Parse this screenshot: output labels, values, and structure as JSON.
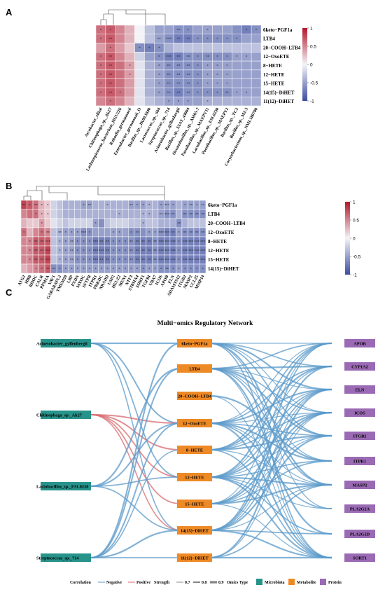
{
  "panels": {
    "a": "A",
    "b": "B",
    "c": "C"
  },
  "colorbar_ticks": [
    "1",
    "0.5",
    "0",
    "-0.5",
    "-1"
  ],
  "chart_data": [
    {
      "type": "heatmap",
      "panel": "A",
      "rows": [
        "6keto−PGF1a",
        "LTB4",
        "20−COOH−LTB4",
        "12−OxoETE",
        "8−HETE",
        "12−HETE",
        "15−HETE",
        "14(15)−DiHET",
        "11(12)−DiHET"
      ],
      "columns": [
        "Arcobacter_ellisii",
        "Chitinophaga_sp._Ak27",
        "Lachnospiraceae_bacterium_HGU226",
        "Rahnella_germanoacii",
        "Enterobacter_germanoaii_O",
        "Bacillus_sp._JK00.1840",
        "Lactococcus_sp._S04",
        "Streptococcus_sp._714",
        "Acinetobacter_gyllenbergii",
        "Bacillus_sp._EIAT_43004",
        "Oceanobacillus_sp._AM05-7",
        "Paenibacillus_sp._MAEPY11",
        "Lactobacillus_sp._ESL0230",
        "Paenibacillus_sp._MAEPY2",
        "Bacillus_sp._YC2",
        "Bacillus_sp._M2-3",
        "Corynebacterium_sp._NML180780"
      ],
      "values": [
        [
          0.6,
          0.7,
          0.5,
          0.3,
          0.0,
          -0.3,
          -0.5,
          -0.5,
          -0.6,
          -0.6,
          -0.5,
          -0.5,
          -0.5,
          -0.5,
          -0.6,
          -0.7,
          -0.6
        ],
        [
          0.6,
          0.7,
          0.5,
          0.3,
          0.0,
          -0.3,
          -0.5,
          -0.6,
          -0.7,
          -0.7,
          -0.6,
          -0.6,
          -0.6,
          -0.6,
          -0.6,
          -0.5,
          -0.5
        ],
        [
          0.4,
          0.6,
          0.4,
          0.2,
          -0.6,
          -0.7,
          -0.6,
          -0.4,
          -0.3,
          -0.3,
          -0.3,
          -0.3,
          -0.3,
          -0.3,
          -0.3,
          -0.3,
          -0.3
        ],
        [
          0.6,
          0.7,
          0.5,
          0.3,
          -0.2,
          -0.5,
          -0.6,
          -0.7,
          -0.7,
          -0.6,
          -0.6,
          -0.6,
          -0.6,
          -0.6,
          -0.5,
          -0.5,
          -0.5
        ],
        [
          0.6,
          0.7,
          0.6,
          0.4,
          -0.1,
          -0.4,
          -0.5,
          -0.6,
          -0.6,
          -0.6,
          -0.6,
          -0.5,
          -0.5,
          -0.5,
          -0.5,
          -0.5,
          -0.5
        ],
        [
          0.6,
          0.7,
          0.6,
          0.4,
          -0.1,
          -0.4,
          -0.5,
          -0.6,
          -0.6,
          -0.6,
          -0.6,
          -0.5,
          -0.5,
          -0.5,
          -0.5,
          -0.5,
          -0.5
        ],
        [
          0.6,
          0.7,
          0.6,
          0.4,
          -0.1,
          -0.4,
          -0.5,
          -0.6,
          -0.6,
          -0.6,
          -0.6,
          -0.5,
          -0.5,
          -0.5,
          -0.5,
          -0.5,
          -0.5
        ],
        [
          0.6,
          0.7,
          0.6,
          0.4,
          -0.1,
          -0.4,
          -0.5,
          -0.6,
          -0.7,
          -0.6,
          -0.6,
          -0.6,
          -0.6,
          -0.6,
          -0.5,
          -0.5,
          -0.5
        ],
        [
          0.5,
          0.6,
          0.5,
          0.3,
          -0.1,
          -0.3,
          -0.4,
          -0.5,
          -0.5,
          -0.5,
          -0.5,
          -0.4,
          -0.4,
          -0.4,
          -0.4,
          -0.4,
          -0.4
        ]
      ],
      "stars": [
        [
          "*",
          "*",
          "",
          "",
          "",
          "",
          "",
          "",
          "**",
          "*",
          "",
          "*",
          "",
          "",
          "",
          "*",
          "*"
        ],
        [
          "*",
          "**",
          "",
          "",
          "",
          "",
          "**",
          "***",
          "**",
          "**",
          "*",
          "*",
          "*",
          "*",
          "*",
          "",
          ""
        ],
        [
          "",
          "*",
          "",
          "",
          "*",
          "*",
          "*",
          "",
          "",
          "",
          "",
          "",
          "",
          "",
          "",
          "",
          ""
        ],
        [
          "*",
          "**",
          "",
          "",
          "",
          "",
          "*",
          "***",
          "**",
          "**",
          "*",
          "**",
          "*",
          "*",
          "*",
          "*",
          ""
        ],
        [
          "*",
          "**",
          "",
          "*",
          "",
          "",
          "*",
          "**",
          "**",
          "**",
          "*",
          "*",
          "*",
          "*",
          "",
          "",
          ""
        ],
        [
          "*",
          "**",
          "",
          "*",
          "",
          "",
          "*",
          "**",
          "**",
          "**",
          "*",
          "*",
          "*",
          "*",
          "",
          "",
          ""
        ],
        [
          "*",
          "**",
          "",
          "",
          "",
          "",
          "*",
          "**",
          "**",
          "**",
          "*",
          "*",
          "*",
          "*",
          "",
          "",
          ""
        ],
        [
          "*",
          "**",
          "*",
          "",
          "",
          "",
          "*",
          "**",
          "**",
          "**",
          "*",
          "*",
          "*",
          "**",
          "*",
          "*",
          ""
        ],
        [
          "",
          "*",
          "",
          "",
          "",
          "",
          "",
          "*",
          "*",
          "*",
          "",
          "*",
          "",
          "",
          "",
          "",
          ""
        ]
      ],
      "range": [
        -1,
        1
      ]
    },
    {
      "type": "heatmap",
      "panel": "B",
      "rows": [
        "6keto−PGF1a",
        "LTB4",
        "20−COOH−LTB4",
        "12−OxoETE",
        "8−HETE",
        "12−HETE",
        "15−HETE",
        "14(15)−DiHET"
      ],
      "columns": [
        "ATG2",
        "HBB",
        "RHOC",
        "CALR",
        "PPM1A",
        "VAV1",
        "GABARAPL2",
        "TMEM59",
        "LBP",
        "PXDN",
        "MYOC",
        "SFTPB",
        "ITPR1",
        "PRKDC",
        "NRADD",
        "USP2",
        "HELZ2",
        "MEN1",
        "NTF3",
        "ST8SIA4",
        "SORT1",
        "TGFBI",
        "UBA7",
        "ICOS",
        "APOB",
        "ELN",
        "ADAMTS12",
        "ITGB2",
        "MASP2",
        "CCL25",
        "MMP14"
      ],
      "values": [
        [
          0.8,
          0.7,
          0.6,
          0.3,
          0.2,
          -0.2,
          -0.3,
          -0.4,
          -0.4,
          -0.4,
          -0.5,
          -0.5,
          -0.4,
          -0.4,
          -0.4,
          -0.4,
          -0.4,
          -0.4,
          -0.5,
          -0.5,
          -0.5,
          -0.4,
          -0.4,
          -0.5,
          -0.5,
          -0.5,
          -0.4,
          -0.5,
          -0.5,
          -0.5,
          -0.5
        ],
        [
          0.5,
          0.6,
          0.6,
          0.3,
          0.2,
          -0.2,
          -0.3,
          -0.4,
          -0.4,
          -0.4,
          -0.4,
          -0.4,
          -0.4,
          -0.4,
          -0.4,
          -0.4,
          -0.4,
          -0.4,
          -0.4,
          -0.4,
          -0.4,
          -0.4,
          -0.4,
          -0.5,
          -0.6,
          -0.6,
          -0.4,
          -0.6,
          -0.6,
          -0.6,
          -0.6
        ],
        [
          0.3,
          0.2,
          0.2,
          0.4,
          0.2,
          -0.1,
          -0.2,
          -0.3,
          -0.2,
          -0.2,
          -0.2,
          -0.2,
          -0.5,
          -0.6,
          -0.3,
          -0.2,
          -0.2,
          -0.2,
          -0.3,
          -0.3,
          -0.4,
          -0.3,
          -0.3,
          -0.4,
          -0.4,
          -0.4,
          -0.6,
          -0.4,
          -0.3,
          -0.3,
          -0.3
        ],
        [
          0.6,
          0.3,
          0.5,
          0.6,
          0.5,
          -0.3,
          -0.4,
          -0.5,
          -0.5,
          -0.5,
          -0.6,
          -0.6,
          -0.5,
          -0.5,
          -0.5,
          -0.5,
          -0.5,
          -0.5,
          -0.6,
          -0.6,
          -0.6,
          -0.5,
          -0.5,
          -0.6,
          -0.7,
          -0.7,
          -0.5,
          -0.6,
          -0.6,
          -0.6,
          -0.6
        ],
        [
          0.5,
          0.5,
          0.7,
          0.7,
          0.7,
          -0.3,
          -0.4,
          -0.5,
          -0.5,
          -0.6,
          -0.6,
          -0.6,
          -0.7,
          -0.7,
          -0.7,
          -0.6,
          -0.6,
          -0.6,
          -0.6,
          -0.7,
          -0.7,
          -0.7,
          -0.6,
          -0.7,
          -0.7,
          -0.7,
          -0.6,
          -0.7,
          -0.7,
          -0.7,
          -0.7
        ],
        [
          0.5,
          0.5,
          0.7,
          0.7,
          0.8,
          -0.3,
          -0.4,
          -0.5,
          -0.5,
          -0.6,
          -0.6,
          -0.6,
          -0.7,
          -0.7,
          -0.7,
          -0.6,
          -0.6,
          -0.6,
          -0.6,
          -0.7,
          -0.7,
          -0.7,
          -0.6,
          -0.7,
          -0.7,
          -0.7,
          -0.6,
          -0.7,
          -0.7,
          -0.7,
          -0.7
        ],
        [
          0.5,
          0.5,
          0.7,
          0.7,
          0.8,
          -0.3,
          -0.4,
          -0.5,
          -0.5,
          -0.6,
          -0.6,
          -0.6,
          -0.7,
          -0.7,
          -0.7,
          -0.6,
          -0.6,
          -0.6,
          -0.6,
          -0.7,
          -0.7,
          -0.7,
          -0.6,
          -0.7,
          -0.7,
          -0.7,
          -0.6,
          -0.7,
          -0.7,
          -0.7,
          -0.7
        ],
        [
          0.3,
          0.4,
          0.5,
          0.6,
          0.7,
          -0.6,
          -0.6,
          -0.5,
          -0.5,
          -0.5,
          -0.5,
          -0.5,
          -0.5,
          -0.5,
          -0.5,
          -0.5,
          -0.5,
          -0.5,
          -0.5,
          -0.5,
          -0.6,
          -0.5,
          -0.5,
          -0.6,
          -0.6,
          -0.6,
          -0.5,
          -0.6,
          -0.6,
          -0.6,
          -0.6
        ]
      ],
      "stars": [
        [
          "**",
          "*",
          "**",
          "*",
          "*",
          "",
          "",
          "",
          "",
          "",
          "*",
          "**",
          "",
          "",
          "*",
          "",
          "",
          "",
          "**",
          "*",
          "*",
          "*",
          "",
          "*",
          "***",
          "*",
          "",
          "*",
          "**",
          "*",
          "**"
        ],
        [
          "",
          "",
          "*",
          "*",
          "*",
          "",
          "",
          "",
          "",
          "",
          "",
          "",
          "",
          "",
          "",
          "",
          "*",
          "",
          "",
          "",
          "*",
          "*",
          "",
          "**",
          "***",
          "**",
          "",
          "**",
          "**",
          "**",
          "**"
        ],
        [
          "",
          "",
          "",
          "*",
          "",
          "",
          "",
          "",
          "",
          "",
          "",
          "",
          "*",
          "",
          "",
          "",
          "",
          "",
          "",
          "",
          "*",
          "",
          "",
          "",
          "",
          "",
          "**",
          "",
          "",
          "",
          ""
        ],
        [
          "*",
          "",
          "",
          "*",
          "**",
          "",
          "**",
          "*",
          "*",
          "*",
          "***",
          "*",
          "",
          "",
          "",
          "*",
          "*",
          "",
          "*",
          "**",
          "",
          "*",
          "*",
          "***",
          "***",
          "**",
          "*",
          "**",
          "**",
          "**",
          "**"
        ],
        [
          "",
          "*",
          "**",
          "**",
          "***",
          "",
          "*",
          "*",
          "**",
          "*",
          "*",
          "*",
          "***",
          "**",
          "**",
          "*",
          "*",
          "*",
          "**",
          "**",
          "**",
          "**",
          "**",
          "***",
          "***",
          "***",
          "*",
          "***",
          "***",
          "***",
          "***"
        ],
        [
          "",
          "*",
          "**",
          "**",
          "***",
          "",
          "*",
          "*",
          "**",
          "*",
          "*",
          "*",
          "***",
          "***",
          "**",
          "*",
          "*",
          "*",
          "**",
          "**",
          "**",
          "**",
          "**",
          "***",
          "***",
          "***",
          "*",
          "***",
          "***",
          "***",
          "***"
        ],
        [
          "",
          "*",
          "**",
          "**",
          "***",
          "",
          "*",
          "*",
          "**",
          "*",
          "*",
          "*",
          "***",
          "**",
          "**",
          "*",
          "*",
          "*",
          "**",
          "**",
          "**",
          "**",
          "**",
          "***",
          "***",
          "***",
          "*",
          "***",
          "***",
          "***",
          "***"
        ],
        [
          "",
          "",
          "*",
          "*",
          "**",
          "**",
          "*",
          "*",
          "*",
          "*",
          "*",
          "*",
          "*",
          "*",
          "*",
          "*",
          "*",
          "*",
          "*",
          "*",
          "*",
          "*",
          "*",
          "*",
          "**",
          "*",
          "*",
          "*",
          "*",
          "*",
          "*"
        ]
      ],
      "range": [
        -1,
        1
      ]
    }
  ],
  "network": {
    "title": "Multi−omics Regulatory Network",
    "microbiota": [
      "Acinetobacter_gyllenbergii",
      "Chitinophaga_sp._Ak27",
      "Lactobacillus_sp._ESL0230",
      "Streptococcus_sp._714"
    ],
    "metabolites": [
      "6keto−PGF1a",
      "LTB4",
      "20−COOH−LTB4",
      "12−OxoETE",
      "8−HETE",
      "12−HETE",
      "15−HETE",
      "14(15)−DiHET",
      "11(12)−DiHET"
    ],
    "proteins": [
      "APOB",
      "CYP1A2",
      "ELN",
      "ICOS",
      "ITGB2",
      "ITPR1",
      "MASP2",
      "PLA2G2A",
      "PLA2G2D",
      "SORT1"
    ],
    "colors": {
      "microbiota": "#27938b",
      "metabolite": "#ee8a26",
      "protein": "#9a6ab4",
      "negative": "#5b9ac9",
      "positive": "#d86a6e"
    },
    "legend": {
      "correlation_label": "Correlation",
      "negative_label": "Negative",
      "positive_label": "Positive",
      "strength_label": "Strength",
      "strength_values": [
        "0.7",
        "0.8",
        "0.9"
      ],
      "omics_label": "Omics Type",
      "omics_types": [
        "Microbiota",
        "Metabolite",
        "Protein"
      ]
    }
  }
}
